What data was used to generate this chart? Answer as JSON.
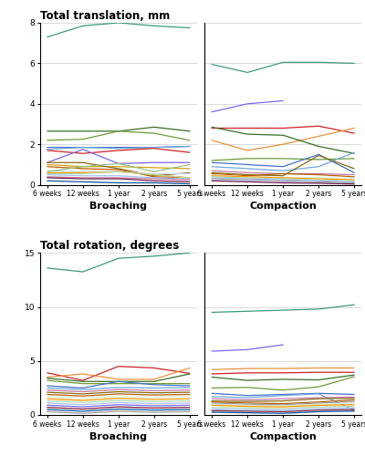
{
  "xticklabels": [
    "6 weeks",
    "12 weeks",
    "1 year",
    "2 years",
    "5 years"
  ],
  "x": [
    0,
    1,
    2,
    3,
    4
  ],
  "broach_trans": [
    [
      7.3,
      7.85,
      8.0,
      7.85,
      7.75
    ],
    [
      2.65,
      2.65,
      2.65,
      2.85,
      2.65
    ],
    [
      2.2,
      2.25,
      2.65,
      2.55,
      2.2
    ],
    [
      1.85,
      1.85,
      1.85,
      1.85,
      1.9
    ],
    [
      1.75,
      1.85,
      1.8,
      1.85,
      1.9
    ],
    [
      1.7,
      1.55,
      1.7,
      1.8,
      1.6
    ],
    [
      1.1,
      1.75,
      1.05,
      1.1,
      1.1
    ],
    [
      1.0,
      0.9,
      0.9,
      0.85,
      0.8
    ],
    [
      1.1,
      1.1,
      0.8,
      0.45,
      0.6
    ],
    [
      0.9,
      0.8,
      0.75,
      0.4,
      0.35
    ],
    [
      0.7,
      0.65,
      0.65,
      0.55,
      0.55
    ],
    [
      0.65,
      0.9,
      1.05,
      0.65,
      1.0
    ],
    [
      0.6,
      0.6,
      0.65,
      0.5,
      0.35
    ],
    [
      0.55,
      0.55,
      0.65,
      0.5,
      0.35
    ],
    [
      0.5,
      0.45,
      0.45,
      0.35,
      0.3
    ],
    [
      0.4,
      0.35,
      0.35,
      0.3,
      0.25
    ],
    [
      0.35,
      0.3,
      0.3,
      0.2,
      0.15
    ],
    [
      0.2,
      0.15,
      0.1,
      0.1,
      0.05
    ]
  ],
  "broach_trans_colors": [
    "#3d9a7e",
    "#3a6e28",
    "#6c9c38",
    "#4472c4",
    "#6fa8dc",
    "#cc2222",
    "#7b68ee",
    "#d4a017",
    "#8b6914",
    "#b45f06",
    "#c9daf8",
    "#93c47d",
    "#ff9900",
    "#b6d7a8",
    "#a4c2f4",
    "#c27ba0",
    "#741b47",
    "#0b5394"
  ],
  "compact_trans": [
    [
      5.95,
      5.55,
      6.05,
      6.05,
      6.0
    ],
    [
      3.6,
      4.0,
      4.15,
      null,
      null
    ],
    [
      2.8,
      2.8,
      2.8,
      2.9,
      2.55
    ],
    [
      2.2,
      1.7,
      2.0,
      2.4,
      2.8
    ],
    [
      2.85,
      2.5,
      2.45,
      1.9,
      1.55
    ],
    [
      1.2,
      1.3,
      1.3,
      1.25,
      1.3
    ],
    [
      1.1,
      1.0,
      0.9,
      1.5,
      0.6
    ],
    [
      0.9,
      0.8,
      0.7,
      0.9,
      1.6
    ],
    [
      0.7,
      0.6,
      0.55,
      0.55,
      0.5
    ],
    [
      0.6,
      0.5,
      0.45,
      1.45,
      0.8
    ],
    [
      0.55,
      0.45,
      0.55,
      0.5,
      0.4
    ],
    [
      0.5,
      0.4,
      0.35,
      0.35,
      0.3
    ],
    [
      0.45,
      0.4,
      0.35,
      0.3,
      0.25
    ],
    [
      0.4,
      0.35,
      0.3,
      0.25,
      0.2
    ],
    [
      0.35,
      0.3,
      0.25,
      0.2,
      0.15
    ],
    [
      0.3,
      0.25,
      0.2,
      0.15,
      0.1
    ],
    [
      0.25,
      0.2,
      0.15,
      0.1,
      0.05
    ],
    [
      0.2,
      0.15,
      0.1,
      0.08,
      0.04
    ]
  ],
  "compact_trans_colors": [
    "#3d9a7e",
    "#7b68ee",
    "#cc2222",
    "#e69138",
    "#3a6e28",
    "#6c9c38",
    "#4472c4",
    "#6fa8dc",
    "#c27ba0",
    "#8b6914",
    "#b45f06",
    "#d9ead3",
    "#ff9900",
    "#b6d7a8",
    "#a4c2f4",
    "#999999",
    "#c9daf8",
    "#741b47"
  ],
  "broach_rot": [
    [
      13.6,
      13.25,
      14.5,
      14.7,
      15.0
    ],
    [
      3.9,
      3.2,
      4.5,
      4.35,
      3.85
    ],
    [
      3.5,
      3.8,
      3.3,
      3.3,
      4.35
    ],
    [
      3.4,
      3.1,
      3.1,
      3.1,
      3.8
    ],
    [
      3.2,
      2.9,
      2.9,
      2.9,
      2.9
    ],
    [
      2.7,
      2.5,
      3.1,
      2.8,
      2.7
    ],
    [
      2.5,
      2.35,
      2.55,
      2.5,
      2.55
    ],
    [
      2.3,
      2.15,
      2.35,
      2.25,
      2.3
    ],
    [
      2.1,
      1.95,
      2.15,
      2.05,
      2.1
    ],
    [
      1.9,
      1.75,
      1.95,
      1.85,
      1.9
    ],
    [
      1.7,
      1.55,
      1.75,
      1.65,
      1.7
    ],
    [
      1.5,
      1.35,
      1.55,
      1.45,
      1.5
    ],
    [
      1.3,
      1.15,
      1.35,
      1.25,
      1.3
    ],
    [
      1.1,
      0.95,
      1.15,
      1.05,
      1.1
    ],
    [
      0.9,
      0.75,
      0.95,
      0.85,
      0.9
    ],
    [
      0.7,
      0.55,
      0.75,
      0.65,
      0.7
    ],
    [
      0.5,
      0.35,
      0.55,
      0.45,
      0.5
    ],
    [
      0.3,
      0.15,
      0.35,
      0.25,
      0.3
    ]
  ],
  "broach_rot_colors": [
    "#3d9a7e",
    "#cc2222",
    "#e69138",
    "#3a6e28",
    "#6c9c38",
    "#4472c4",
    "#6fa8dc",
    "#c27ba0",
    "#8b6914",
    "#b45f06",
    "#d9ead3",
    "#ff9900",
    "#b6d7a8",
    "#a4c2f4",
    "#7b68ee",
    "#741b47",
    "#0b5394",
    "#999999"
  ],
  "compact_rot": [
    [
      9.5,
      9.6,
      9.7,
      9.8,
      10.2
    ],
    [
      5.9,
      6.05,
      6.5,
      null,
      null
    ],
    [
      4.2,
      4.3,
      4.3,
      4.35,
      4.35
    ],
    [
      3.8,
      3.9,
      3.9,
      3.95,
      3.95
    ],
    [
      3.5,
      3.2,
      3.3,
      3.25,
      3.7
    ],
    [
      2.5,
      2.55,
      2.3,
      2.6,
      3.55
    ],
    [
      2.0,
      1.8,
      1.9,
      2.0,
      1.9
    ],
    [
      1.7,
      1.6,
      1.8,
      1.95,
      0.45
    ],
    [
      1.5,
      1.4,
      1.5,
      1.6,
      1.65
    ],
    [
      1.3,
      1.25,
      1.3,
      1.5,
      1.55
    ],
    [
      1.2,
      1.1,
      1.05,
      1.2,
      1.4
    ],
    [
      1.1,
      1.0,
      0.95,
      1.1,
      1.25
    ],
    [
      1.0,
      0.9,
      0.85,
      1.0,
      1.1
    ],
    [
      0.9,
      0.8,
      0.75,
      0.9,
      0.95
    ],
    [
      0.7,
      0.65,
      0.6,
      0.75,
      0.8
    ],
    [
      0.55,
      0.5,
      0.45,
      0.6,
      0.65
    ],
    [
      0.4,
      0.35,
      0.3,
      0.45,
      0.5
    ],
    [
      0.25,
      0.2,
      0.15,
      0.3,
      0.35
    ]
  ],
  "compact_rot_colors": [
    "#3d9a7e",
    "#7b68ee",
    "#e69138",
    "#cc2222",
    "#3a6e28",
    "#6c9c38",
    "#4472c4",
    "#6fa8dc",
    "#c27ba0",
    "#8b6914",
    "#b45f06",
    "#999999",
    "#d9ead3",
    "#ff9900",
    "#b6d7a8",
    "#a4c2f4",
    "#741b47",
    "#0b5394"
  ],
  "trans_ylim": [
    0,
    8
  ],
  "rot_ylim": [
    0,
    15
  ],
  "trans_yticks": [
    0,
    2,
    4,
    6,
    8
  ],
  "rot_yticks": [
    0,
    5,
    10,
    15
  ],
  "title_trans": "Total translation, mm",
  "title_rot": "Total rotation, degrees",
  "xlabel_broach": "Broaching",
  "xlabel_compact": "Compaction"
}
